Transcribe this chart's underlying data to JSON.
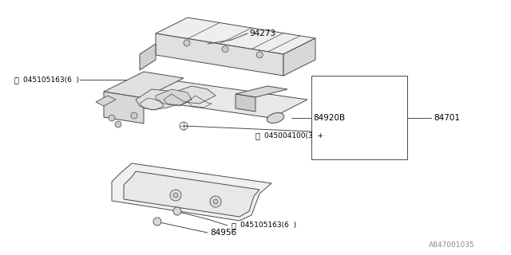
{
  "bg_color": "#ffffff",
  "line_color": "#4a4a4a",
  "text_color": "#000000",
  "fig_width": 6.4,
  "fig_height": 3.2,
  "dpi": 100,
  "watermark": "A847001035",
  "lw": 0.7
}
